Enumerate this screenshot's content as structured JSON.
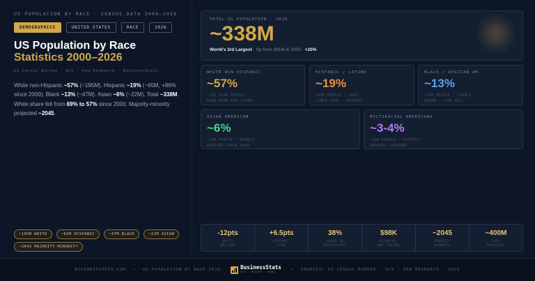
{
  "header": {
    "eyebrow": "US POPULATION BY RACE · CENSUS DATA 2000–2026",
    "tags": [
      "DEMOGRAPHICS",
      "UNITED STATES",
      "RACE",
      "2026"
    ],
    "title_line1": "US Population by Race",
    "title_line2": "Statistics 2000–2026",
    "sources": "US Census Bureau · ACS · Pew Research · BusinessStats"
  },
  "summary": {
    "t1": "White non-Hispanic ",
    "b1": "~57%",
    "t2": " (~195M). Hispanic ",
    "b2": "~19%",
    "t3": " (~65M, +86% since 2000). Black ",
    "b3": "~13%",
    "t4": " (~47M). Asian ",
    "b4": "~6%",
    "t5": " (~22M). Total ",
    "b5": "~338M",
    "t6": ". White share fell from ",
    "b6": "69% to 57%",
    "t7": " since 2000. Majority-minority projected ",
    "b7": "~2045",
    "t8": "."
  },
  "chips": [
    "~195M WHITE",
    "~65M HISPANIC",
    "~47M BLACK",
    "~22M ASIAN",
    "~2045 MAJORITY-MINORITY"
  ],
  "hero": {
    "label": "TOTAL US POPULATION · 2026",
    "value": "~338M",
    "rank": "World's 3rd Largest",
    "sub": " · Up from 281M in 2000 · ",
    "growth": "+20%"
  },
  "stats": [
    {
      "label": "WHITE NON-HISPANIC",
      "value": "~57%",
      "note1": "~195 SIGN PEOPLE",
      "note2": "DOWN FROM 69% (2000)",
      "color": "#d4a84a"
    },
    {
      "label": "HISPANIC / LATINO",
      "value": "~19%",
      "note1": "~65M PEOPLE · +86%",
      "note2": "SINCE 2000 · FASTEST",
      "color": "#ef8f3a"
    },
    {
      "label": "BLACK / AFRICAN AM.",
      "value": "~13%",
      "note1": "~47M PEOPLE · STABLE",
      "note2": "SHARE · +40% REL.",
      "color": "#5aa0ee"
    },
    {
      "label": "ASIAN AMERICAN",
      "value": "~6%",
      "note1": "~22M PEOPLE · NEARLY",
      "note2": "DOUBLED SINCE 2000",
      "color": "#4ed08a"
    },
    {
      "label": "MULTIRACIAL AMERICANS",
      "value": "~3-4%",
      "note1": "~12M PEOPLE · FASTEST",
      "note2": "GROWING CATEGORY",
      "color": "#b57af2"
    }
  ],
  "metrics": [
    {
      "value": "-12pts",
      "l1": "WHITE",
      "l2": "DECLINE"
    },
    {
      "value": "+6.5pts",
      "l1": "HISPANIC",
      "l2": "GAIN"
    },
    {
      "value": "38%",
      "l1": "BLACK IN",
      "l2": "MISSISSIPPI"
    },
    {
      "value": "$98K",
      "l1": "ASIAN HH.",
      "l2": "MED. INCOME"
    },
    {
      "value": "~2045",
      "l1": "MINORITY",
      "l2": "MAJORITY"
    },
    {
      "value": "~400M",
      "l1": "2050",
      "l2": "PROJECTED"
    }
  ],
  "footer": {
    "site": "BUSINESSSTATS.COM",
    "topic": "US POPULATION BY RACE 2026",
    "brand_name": "BusinessStats",
    "brand_tag": "DATA · INSIGHTS · TRENDS",
    "sources": "SOURCES: US CENSUS BUREAU · ACS · PEW RESEARCH · 2026"
  },
  "colors": {
    "accent": "#d4a84a",
    "background": "#0d1626",
    "card": "#131e30"
  }
}
